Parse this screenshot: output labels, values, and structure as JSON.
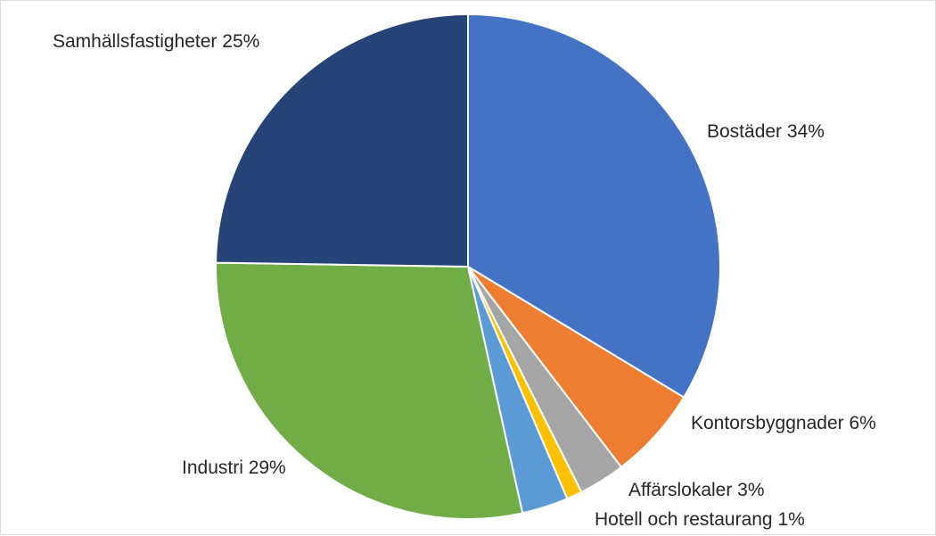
{
  "chart_data": {
    "type": "pie",
    "title": "",
    "start_angle_deg": 0,
    "direction": "clockwise",
    "slices": [
      {
        "category": "Bostäder",
        "value": 34,
        "label": "Bostäder 34%",
        "color": "#4472C4"
      },
      {
        "category": "Kontorsbyggnader",
        "value": 6,
        "label": "Kontorsbyggnader 6%",
        "color": "#ED7D31"
      },
      {
        "category": "Affärslokaler",
        "value": 3,
        "label": "Affärslokaler 3%",
        "color": "#A5A5A5"
      },
      {
        "category": "Hotell och restaurang",
        "value": 1,
        "label": "Hotell och restaurang 1%",
        "color": "#FFC000"
      },
      {
        "category": "",
        "value": 3,
        "label": "",
        "color": "#5B9BD5"
      },
      {
        "category": "Industri",
        "value": 29,
        "label": "Industri 29%",
        "color": "#70AD47"
      },
      {
        "category": "Samhällsfastigheter",
        "value": 25,
        "label": "Samhällsfastigheter 25%",
        "color": "#264478"
      }
    ]
  }
}
